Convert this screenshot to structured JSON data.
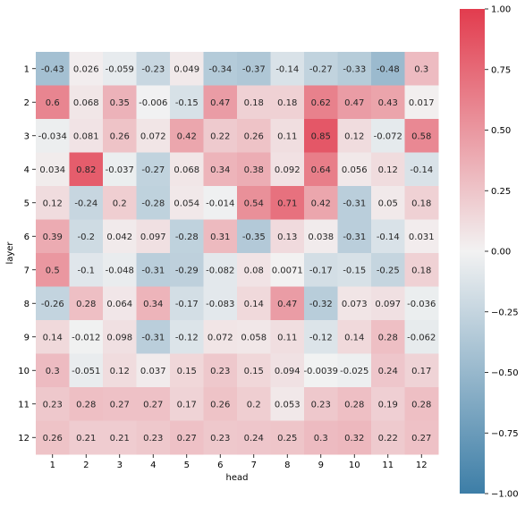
{
  "chart_data": {
    "type": "heatmap",
    "xlabel": "head",
    "ylabel": "layer",
    "x_categories": [
      "1",
      "2",
      "3",
      "4",
      "5",
      "6",
      "7",
      "8",
      "9",
      "10",
      "11",
      "12"
    ],
    "y_categories": [
      "1",
      "2",
      "3",
      "4",
      "5",
      "6",
      "7",
      "8",
      "9",
      "10",
      "11",
      "12"
    ],
    "values": [
      [
        -0.43,
        0.026,
        -0.059,
        -0.23,
        0.049,
        -0.34,
        -0.37,
        -0.14,
        -0.27,
        -0.33,
        -0.48,
        0.3
      ],
      [
        0.6,
        0.068,
        0.35,
        -0.006,
        -0.15,
        0.47,
        0.18,
        0.18,
        0.62,
        0.47,
        0.43,
        0.017
      ],
      [
        -0.034,
        0.081,
        0.26,
        0.072,
        0.42,
        0.22,
        0.26,
        0.11,
        0.85,
        0.12,
        -0.072,
        0.58
      ],
      [
        0.034,
        0.82,
        -0.037,
        -0.27,
        0.068,
        0.34,
        0.38,
        0.092,
        0.64,
        0.056,
        0.12,
        -0.14
      ],
      [
        0.12,
        -0.24,
        0.2,
        -0.28,
        0.054,
        -0.014,
        0.54,
        0.71,
        0.42,
        -0.31,
        0.05,
        0.18
      ],
      [
        0.39,
        -0.2,
        0.042,
        0.097,
        -0.28,
        0.31,
        -0.35,
        0.13,
        0.038,
        -0.31,
        -0.14,
        0.031
      ],
      [
        0.5,
        -0.1,
        -0.048,
        -0.31,
        -0.29,
        -0.082,
        0.08,
        0.0071,
        -0.17,
        -0.15,
        -0.25,
        0.18
      ],
      [
        -0.26,
        0.28,
        0.064,
        0.34,
        -0.17,
        -0.083,
        0.14,
        0.47,
        -0.32,
        0.073,
        0.097,
        -0.036
      ],
      [
        0.14,
        -0.012,
        0.098,
        -0.31,
        -0.12,
        0.072,
        0.058,
        0.11,
        -0.12,
        0.14,
        0.28,
        -0.062
      ],
      [
        0.3,
        -0.051,
        0.12,
        0.037,
        0.15,
        0.23,
        0.15,
        0.094,
        -0.0039,
        -0.025,
        0.24,
        0.17
      ],
      [
        0.23,
        0.28,
        0.27,
        0.27,
        0.17,
        0.26,
        0.2,
        0.053,
        0.23,
        0.28,
        0.19,
        0.28
      ],
      [
        0.26,
        0.21,
        0.21,
        0.23,
        0.27,
        0.23,
        0.24,
        0.25,
        0.3,
        0.32,
        0.22,
        0.27
      ]
    ],
    "cell_labels": [
      [
        "-0.43",
        "0.026",
        "-0.059",
        "-0.23",
        "0.049",
        "-0.34",
        "-0.37",
        "-0.14",
        "-0.27",
        "-0.33",
        "-0.48",
        "0.3"
      ],
      [
        "0.6",
        "0.068",
        "0.35",
        "-0.006",
        "-0.15",
        "0.47",
        "0.18",
        "0.18",
        "0.62",
        "0.47",
        "0.43",
        "0.017"
      ],
      [
        "-0.034",
        "0.081",
        "0.26",
        "0.072",
        "0.42",
        "0.22",
        "0.26",
        "0.11",
        "0.85",
        "0.12",
        "-0.072",
        "0.58"
      ],
      [
        "0.034",
        "0.82",
        "-0.037",
        "-0.27",
        "0.068",
        "0.34",
        "0.38",
        "0.092",
        "0.64",
        "0.056",
        "0.12",
        "-0.14"
      ],
      [
        "0.12",
        "-0.24",
        "0.2",
        "-0.28",
        "0.054",
        "-0.014",
        "0.54",
        "0.71",
        "0.42",
        "-0.31",
        "0.05",
        "0.18"
      ],
      [
        "0.39",
        "-0.2",
        "0.042",
        "0.097",
        "-0.28",
        "0.31",
        "-0.35",
        "0.13",
        "0.038",
        "-0.31",
        "-0.14",
        "0.031"
      ],
      [
        "0.5",
        "-0.1",
        "-0.048",
        "-0.31",
        "-0.29",
        "-0.082",
        "0.08",
        "0.0071",
        "-0.17",
        "-0.15",
        "-0.25",
        "0.18"
      ],
      [
        "-0.26",
        "0.28",
        "0.064",
        "0.34",
        "-0.17",
        "-0.083",
        "0.14",
        "0.47",
        "-0.32",
        "0.073",
        "0.097",
        "-0.036"
      ],
      [
        "0.14",
        "-0.012",
        "0.098",
        "-0.31",
        "-0.12",
        "0.072",
        "0.058",
        "0.11",
        "-0.12",
        "0.14",
        "0.28",
        "-0.062"
      ],
      [
        "0.3",
        "-0.051",
        "0.12",
        "0.037",
        "0.15",
        "0.23",
        "0.15",
        "0.094",
        "-0.0039",
        "-0.025",
        "0.24",
        "0.17"
      ],
      [
        "0.23",
        "0.28",
        "0.27",
        "0.27",
        "0.17",
        "0.26",
        "0.2",
        "0.053",
        "0.23",
        "0.28",
        "0.19",
        "0.28"
      ],
      [
        "0.26",
        "0.21",
        "0.21",
        "0.23",
        "0.27",
        "0.23",
        "0.24",
        "0.25",
        "0.3",
        "0.32",
        "0.22",
        "0.27"
      ]
    ],
    "vmin": -1.0,
    "vmax": 1.0,
    "colormap": {
      "low": "#3d7ea7",
      "mid": "#f2f2f2",
      "high": "#e23c4e"
    },
    "colorbar": {
      "ticks": [
        1.0,
        0.75,
        0.5,
        0.25,
        0.0,
        -0.25,
        -0.5,
        -0.75,
        -1.0
      ],
      "tick_labels": [
        "1.00",
        "0.75",
        "0.50",
        "0.25",
        "0.00",
        "−0.25",
        "−0.50",
        "−0.75",
        "−1.00"
      ]
    },
    "grid": false,
    "legend": "colorbar-right"
  }
}
